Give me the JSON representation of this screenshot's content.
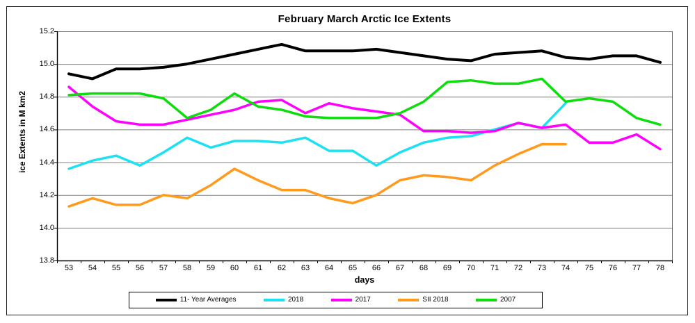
{
  "title": "February March Arctic Ice Extents",
  "axes": {
    "y_label": "ice Extents in M km2",
    "x_label": "days",
    "y_ticks": [
      "15.2",
      "15.0",
      "14.8",
      "14.6",
      "14.4",
      "14.2",
      "14.0",
      "13.8"
    ],
    "x_ticks": [
      "53",
      "54",
      "55",
      "56",
      "57",
      "58",
      "59",
      "60",
      "61",
      "62",
      "63",
      "64",
      "65",
      "66",
      "67",
      "68",
      "69",
      "70",
      "71",
      "72",
      "73",
      "74",
      "75",
      "76",
      "77",
      "78"
    ]
  },
  "legend": [
    {
      "label": "11- Year Averages",
      "color": "#000000"
    },
    {
      "label": "2018",
      "color": "#1ce1f2"
    },
    {
      "label": "2017",
      "color": "#ff00ff"
    },
    {
      "label": "SII 2018",
      "color": "#ff9a1c"
    },
    {
      "label": "2007",
      "color": "#0ddc0d"
    }
  ],
  "colors": {
    "gridline": "#808080",
    "axis": "#000000",
    "plot_right_border": "#6b6b6b",
    "background": "#ffffff"
  },
  "chart_data": {
    "type": "line",
    "title": "February March Arctic Ice Extents",
    "xlabel": "days",
    "ylabel": "ice Extents in M km2",
    "x": [
      53,
      54,
      55,
      56,
      57,
      58,
      59,
      60,
      61,
      62,
      63,
      64,
      65,
      66,
      67,
      68,
      69,
      70,
      71,
      72,
      73,
      74,
      75,
      76,
      77,
      78
    ],
    "ylim": [
      13.8,
      15.2
    ],
    "y_tick_step": 0.2,
    "grid": true,
    "legend_position": "bottom",
    "series": [
      {
        "name": "11- Year Averages",
        "color": "#000000",
        "values": [
          14.94,
          14.91,
          14.97,
          14.97,
          14.98,
          15.0,
          15.03,
          15.06,
          15.09,
          15.12,
          15.08,
          15.08,
          15.08,
          15.09,
          15.07,
          15.05,
          15.03,
          15.02,
          15.06,
          15.07,
          15.08,
          15.04,
          15.03,
          15.05,
          15.05,
          15.01
        ]
      },
      {
        "name": "2018",
        "color": "#1ce1f2",
        "values": [
          14.36,
          14.41,
          14.44,
          14.38,
          14.46,
          14.55,
          14.49,
          14.53,
          14.53,
          14.52,
          14.55,
          14.47,
          14.47,
          14.38,
          14.46,
          14.52,
          14.55,
          14.56,
          14.6,
          14.64,
          14.61,
          14.76,
          null,
          null,
          null,
          null
        ]
      },
      {
        "name": "2017",
        "color": "#ff00ff",
        "values": [
          14.86,
          14.74,
          14.65,
          14.63,
          14.63,
          14.66,
          14.69,
          14.72,
          14.77,
          14.78,
          14.7,
          14.76,
          14.73,
          14.71,
          14.69,
          14.59,
          14.59,
          14.58,
          14.59,
          14.64,
          14.61,
          14.63,
          14.52,
          14.52,
          14.57,
          14.48
        ]
      },
      {
        "name": "SII 2018",
        "color": "#ff9a1c",
        "values": [
          14.13,
          14.18,
          14.14,
          14.14,
          14.2,
          14.18,
          14.26,
          14.36,
          14.29,
          14.23,
          14.23,
          14.18,
          14.15,
          14.2,
          14.29,
          14.32,
          14.31,
          14.29,
          14.38,
          14.45,
          14.51,
          14.51,
          null,
          null,
          null,
          null
        ]
      },
      {
        "name": "2007",
        "color": "#0ddc0d",
        "values": [
          14.81,
          14.82,
          14.82,
          14.82,
          14.79,
          14.67,
          14.72,
          14.82,
          14.74,
          14.72,
          14.68,
          14.67,
          14.67,
          14.67,
          14.7,
          14.77,
          14.89,
          14.9,
          14.88,
          14.88,
          14.91,
          14.77,
          14.79,
          14.77,
          14.67,
          14.63
        ]
      }
    ]
  }
}
